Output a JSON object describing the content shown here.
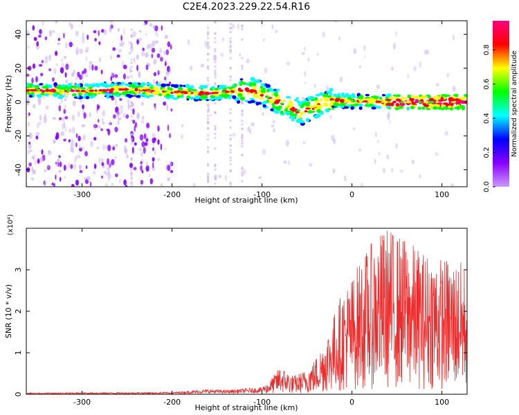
{
  "figure_title": "C2E4.2023.229.22.54.R16",
  "colors": {
    "series": "#ee2a2a",
    "spectrogram_weak": "#c9b0f2",
    "spectrogram_mid": "#7a1ee0",
    "ridge": "#1e3cff"
  },
  "chart_data": [
    {
      "type": "heatmap",
      "title": "",
      "xlabel": "Height of straight line (km)",
      "ylabel": "Frequency (Hz)",
      "xlim": [
        -362,
        128
      ],
      "ylim": [
        -50,
        48
      ],
      "xticks": [
        -300,
        -200,
        -100,
        0,
        100
      ],
      "yticks": [
        -40,
        -20,
        0,
        20,
        40
      ],
      "colorbar": {
        "label": "Normalized spectral amplitude",
        "range": [
          0,
          0.97
        ],
        "ticks": [
          0.0,
          0.2,
          0.4,
          0.6,
          0.8
        ],
        "colormap": [
          "#cc99ff",
          "#8800ff",
          "#0000ff",
          "#00ffff",
          "#00ff00",
          "#ffff00",
          "#ff0000",
          "#ff0080"
        ]
      },
      "ridge_frequency_hz": {
        "x": [
          -362,
          -300,
          -250,
          -200,
          -160,
          -130,
          -110,
          -90,
          -70,
          -55,
          -40,
          -20,
          0,
          50,
          128
        ],
        "y": [
          7,
          6.5,
          7.5,
          6,
          5,
          6.5,
          7,
          2,
          -3,
          -6,
          -2,
          1,
          0.5,
          0,
          0
        ]
      }
    },
    {
      "type": "line",
      "title": "",
      "xlabel": "Height of straight line (km)",
      "ylabel": "SNR (10 * v/v)",
      "multiplier": "(x10⁴)",
      "xlim": [
        -362,
        128
      ],
      "ylim": [
        0,
        4
      ],
      "xticks": [
        -300,
        -200,
        -100,
        0,
        100
      ],
      "yticks": [
        0,
        1,
        2,
        3
      ],
      "series": [
        {
          "name": "SNR",
          "envelope_x": [
            -362,
            -200,
            -160,
            -140,
            -120,
            -100,
            -90,
            -80,
            -65,
            -50,
            -40,
            -30,
            -20,
            -10,
            0,
            10,
            20,
            30,
            40,
            50,
            60,
            70,
            80,
            90,
            100,
            110,
            128
          ],
          "envelope_y": [
            0.02,
            0.03,
            0.07,
            0.06,
            0.08,
            0.1,
            0.25,
            0.45,
            0.3,
            0.4,
            0.6,
            0.9,
            1.3,
            1.7,
            1.9,
            2.2,
            2.4,
            2.6,
            2.7,
            2.6,
            2.5,
            2.4,
            2.3,
            2.3,
            2.2,
            2.2,
            2.1
          ]
        }
      ]
    }
  ]
}
